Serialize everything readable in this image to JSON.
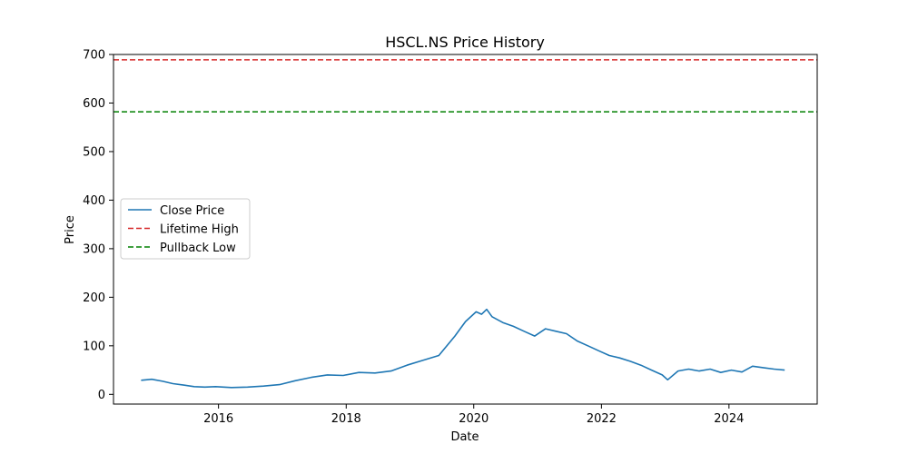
{
  "chart_data": {
    "type": "line",
    "title": "HSCL.NS Price History",
    "xlabel": "Date",
    "ylabel": "Price",
    "ylim": [
      -20,
      700
    ],
    "xlim": [
      "2014-05-10",
      "2025-05-20"
    ],
    "x_ticks": [
      "2016-01-01",
      "2018-01-01",
      "2020-01-01",
      "2022-01-01",
      "2024-01-01"
    ],
    "x_tick_labels": [
      "2016",
      "2018",
      "2020",
      "2022",
      "2024"
    ],
    "y_ticks": [
      0,
      100,
      200,
      300,
      400,
      500,
      600,
      700
    ],
    "y_tick_labels": [
      "0",
      "100",
      "200",
      "300",
      "400",
      "500",
      "600",
      "700"
    ],
    "grid": false,
    "legend": {
      "position": "center-left",
      "entries": [
        {
          "label": "Close Price",
          "style": "solid",
          "color": "#1f77b4"
        },
        {
          "label": "Lifetime High",
          "style": "dashed",
          "color": "#d62728"
        },
        {
          "label": "Pullback Low",
          "style": "dashed",
          "color": "#008000"
        }
      ]
    },
    "reference_lines": [
      {
        "name": "Lifetime High",
        "y": 689,
        "color": "#d62728",
        "style": "dashed"
      },
      {
        "name": "Pullback Low",
        "y": 582,
        "color": "#008000",
        "style": "dashed"
      }
    ],
    "series": [
      {
        "name": "Close Price",
        "color": "#1f77b4",
        "points": [
          [
            "2014-10-15",
            29
          ],
          [
            "2014-12-15",
            31
          ],
          [
            "2015-02-15",
            27
          ],
          [
            "2015-04-15",
            22
          ],
          [
            "2015-06-15",
            19
          ],
          [
            "2015-08-15",
            16
          ],
          [
            "2015-10-15",
            15
          ],
          [
            "2015-12-15",
            16
          ],
          [
            "2016-03-15",
            14
          ],
          [
            "2016-06-15",
            15
          ],
          [
            "2016-09-15",
            17
          ],
          [
            "2016-12-15",
            20
          ],
          [
            "2017-03-15",
            28
          ],
          [
            "2017-06-15",
            35
          ],
          [
            "2017-09-15",
            40
          ],
          [
            "2017-12-15",
            39
          ],
          [
            "2018-03-15",
            45
          ],
          [
            "2018-06-15",
            44
          ],
          [
            "2018-09-15",
            48
          ],
          [
            "2018-12-15",
            60
          ],
          [
            "2019-03-15",
            70
          ],
          [
            "2019-06-15",
            80
          ],
          [
            "2019-09-15",
            120
          ],
          [
            "2019-11-15",
            150
          ],
          [
            "2020-01-15",
            170
          ],
          [
            "2020-02-15",
            165
          ],
          [
            "2020-03-15",
            175
          ],
          [
            "2020-04-15",
            160
          ],
          [
            "2020-06-15",
            148
          ],
          [
            "2020-08-15",
            140
          ],
          [
            "2020-10-15",
            130
          ],
          [
            "2020-12-15",
            120
          ],
          [
            "2021-02-15",
            135
          ],
          [
            "2021-04-15",
            130
          ],
          [
            "2021-06-15",
            125
          ],
          [
            "2021-08-15",
            110
          ],
          [
            "2021-10-15",
            100
          ],
          [
            "2021-12-15",
            90
          ],
          [
            "2022-02-15",
            80
          ],
          [
            "2022-04-15",
            75
          ],
          [
            "2022-06-15",
            68
          ],
          [
            "2022-08-15",
            60
          ],
          [
            "2022-10-15",
            50
          ],
          [
            "2022-12-15",
            40
          ],
          [
            "2023-01-15",
            30
          ],
          [
            "2023-03-15",
            48
          ],
          [
            "2023-05-15",
            52
          ],
          [
            "2023-07-15",
            48
          ],
          [
            "2023-09-15",
            52
          ],
          [
            "2023-11-15",
            45
          ],
          [
            "2024-01-15",
            50
          ],
          [
            "2024-03-15",
            46
          ],
          [
            "2024-05-15",
            58
          ],
          [
            "2024-07-15",
            55
          ],
          [
            "2024-09-15",
            52
          ],
          [
            "2024-11-15",
            50
          ]
        ]
      }
    ]
  }
}
